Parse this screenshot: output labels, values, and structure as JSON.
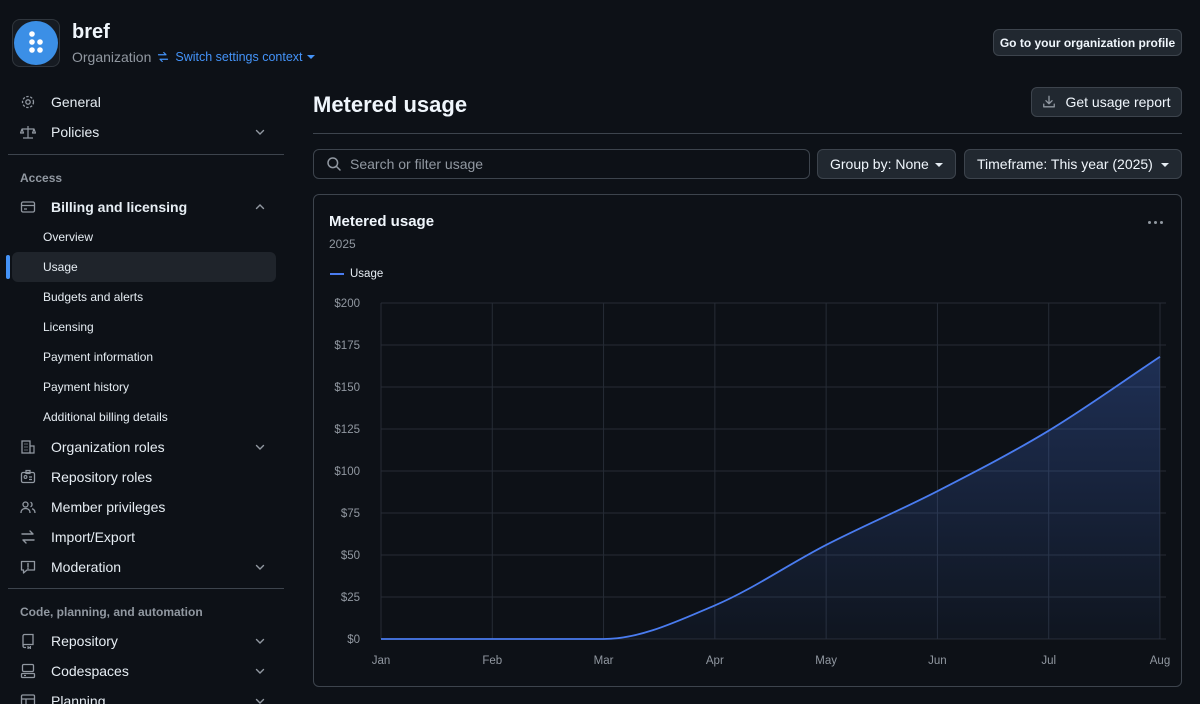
{
  "header": {
    "org_name": "bref",
    "org_type": "Organization",
    "switch_context": "Switch settings context",
    "profile_button": "Go to your organization profile"
  },
  "sidebar": {
    "general": "General",
    "policies": "Policies",
    "access_section": "Access",
    "billing": "Billing and licensing",
    "billing_items": [
      "Overview",
      "Usage",
      "Budgets and alerts",
      "Licensing",
      "Payment information",
      "Payment history",
      "Additional billing details"
    ],
    "active_item": "Usage",
    "org_roles": "Organization roles",
    "repo_roles": "Repository roles",
    "member_privileges": "Member privileges",
    "import_export": "Import/Export",
    "moderation": "Moderation",
    "code_section": "Code, planning, and automation",
    "repository": "Repository",
    "codespaces": "Codespaces",
    "planning": "Planning"
  },
  "main": {
    "title": "Metered usage",
    "report_button": "Get usage report",
    "search_placeholder": "Search or filter usage",
    "group_by": "Group by: None",
    "timeframe": "Timeframe: This year (2025)"
  },
  "card": {
    "title": "Metered usage",
    "subtitle": "2025",
    "legend": "Usage"
  },
  "colors": {
    "accent": "#4493f8",
    "series": "#4a7cf0",
    "background": "#0d1117"
  },
  "chart_data": {
    "type": "area",
    "title": "Metered usage",
    "subtitle": "2025",
    "categories": [
      "Jan",
      "Feb",
      "Mar",
      "Apr",
      "May",
      "Jun",
      "Jul",
      "Aug"
    ],
    "series": [
      {
        "name": "Usage",
        "values": [
          0,
          0,
          0,
          20,
          56,
          88,
          124,
          168
        ]
      }
    ],
    "y_ticks": [
      "$0",
      "$25",
      "$50",
      "$75",
      "$100",
      "$125",
      "$150",
      "$175",
      "$200"
    ],
    "ylim": [
      0,
      200
    ],
    "grid": true,
    "legend_position": "top-left"
  }
}
